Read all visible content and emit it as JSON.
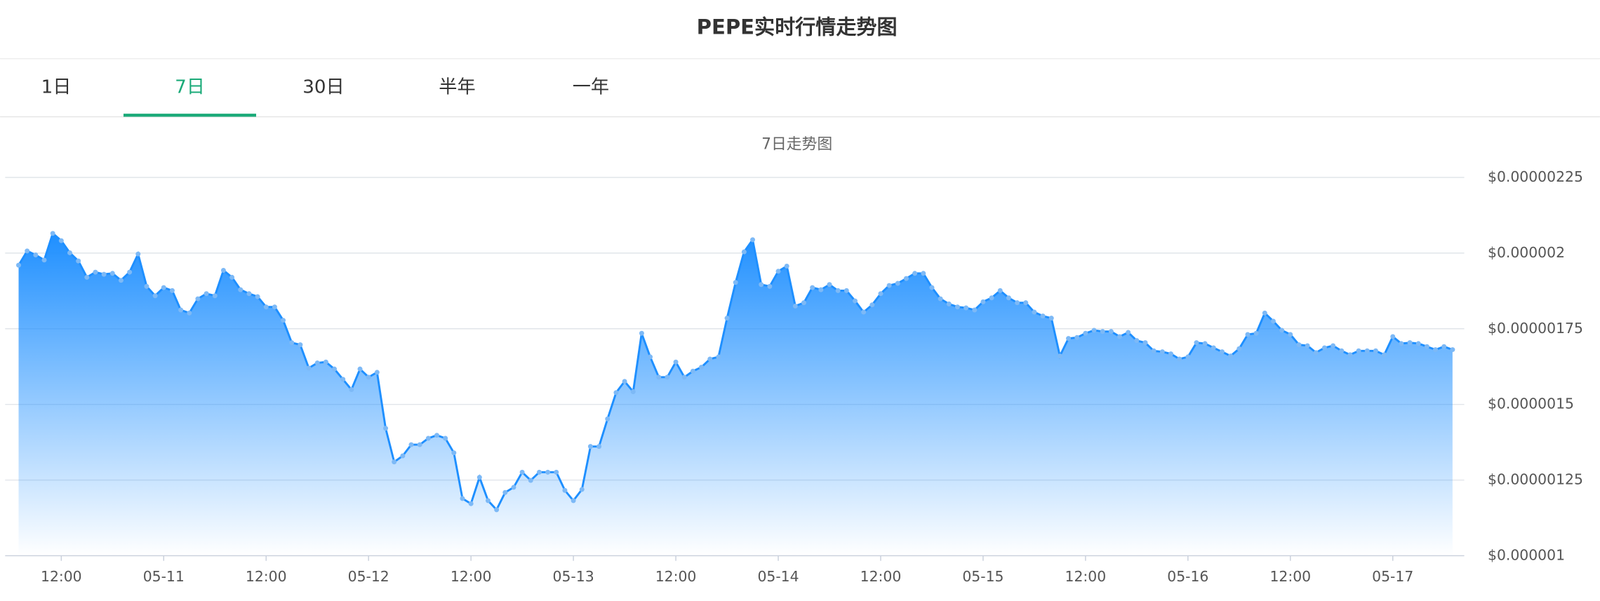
{
  "header": {
    "title": "PEPE实时行情走势图"
  },
  "tabs": {
    "items": [
      "1日",
      "7日",
      "30日",
      "半年",
      "一年"
    ],
    "active": 1,
    "active_color": "#1aaa78"
  },
  "chart_data": {
    "type": "area",
    "title": "7日走势图",
    "color": "#1e8fff",
    "categories": [
      null,
      null,
      null,
      null,
      null,
      "12:00",
      null,
      null,
      null,
      null,
      null,
      null,
      null,
      null,
      null,
      null,
      null,
      "05-11",
      null,
      null,
      null,
      null,
      null,
      null,
      null,
      null,
      null,
      null,
      null,
      "12:00",
      null,
      null,
      null,
      null,
      null,
      null,
      null,
      null,
      null,
      null,
      null,
      "05-12",
      null,
      null,
      null,
      null,
      null,
      null,
      null,
      null,
      null,
      null,
      null,
      "12:00",
      null,
      null,
      null,
      null,
      null,
      null,
      null,
      null,
      null,
      null,
      null,
      "05-13",
      null,
      null,
      null,
      null,
      null,
      null,
      null,
      null,
      null,
      null,
      null,
      "12:00",
      null,
      null,
      null,
      null,
      null,
      null,
      null,
      null,
      null,
      null,
      null,
      "05-14",
      null,
      null,
      null,
      null,
      null,
      null,
      null,
      null,
      null,
      null,
      null,
      "12:00",
      null,
      null,
      null,
      null,
      null,
      null,
      null,
      null,
      null,
      null,
      null,
      "05-15",
      null,
      null,
      null,
      null,
      null,
      null,
      null,
      null,
      null,
      null,
      null,
      "12:00",
      null,
      null,
      null,
      null,
      null,
      null,
      null,
      null,
      null,
      null,
      null,
      "05-16",
      null,
      null,
      null,
      null,
      null,
      null,
      null,
      null,
      null,
      null,
      null,
      "12:00",
      null,
      null,
      null,
      null,
      null,
      null,
      null,
      null,
      null,
      null,
      null,
      "05-17",
      null,
      null,
      null,
      null,
      null,
      null,
      null
    ],
    "values": [
      1.96e-06,
      2.007e-06,
      1.994e-06,
      1.977e-06,
      2.065e-06,
      2.041e-06,
      2.001e-06,
      1.974e-06,
      1.92e-06,
      1.937e-06,
      1.93e-06,
      1.933e-06,
      1.91e-06,
      1.937e-06,
      1.997e-06,
      1.89e-06,
      1.859e-06,
      1.886e-06,
      1.876e-06,
      1.812e-06,
      1.802e-06,
      1.849e-06,
      1.866e-06,
      1.859e-06,
      1.943e-06,
      1.92e-06,
      1.879e-06,
      1.866e-06,
      1.856e-06,
      1.822e-06,
      1.822e-06,
      1.778e-06,
      1.704e-06,
      1.697e-06,
      1.62e-06,
      1.637e-06,
      1.64e-06,
      1.617e-06,
      1.583e-06,
      1.549e-06,
      1.617e-06,
      1.59e-06,
      1.606e-06,
      1.421e-06,
      1.31e-06,
      1.33e-06,
      1.367e-06,
      1.367e-06,
      1.388e-06,
      1.398e-06,
      1.388e-06,
      1.34e-06,
      1.189e-06,
      1.172e-06,
      1.259e-06,
      1.182e-06,
      1.152e-06,
      1.209e-06,
      1.226e-06,
      1.276e-06,
      1.249e-06,
      1.276e-06,
      1.276e-06,
      1.276e-06,
      1.216e-06,
      1.182e-06,
      1.219e-06,
      1.361e-06,
      1.361e-06,
      1.452e-06,
      1.539e-06,
      1.576e-06,
      1.542e-06,
      1.735e-06,
      1.657e-06,
      1.59e-06,
      1.59e-06,
      1.64e-06,
      1.59e-06,
      1.61e-06,
      1.623e-06,
      1.65e-06,
      1.657e-06,
      1.785e-06,
      1.903e-06,
      2.004e-06,
      2.044e-06,
      1.896e-06,
      1.89e-06,
      1.94e-06,
      1.957e-06,
      1.825e-06,
      1.836e-06,
      1.886e-06,
      1.879e-06,
      1.896e-06,
      1.876e-06,
      1.876e-06,
      1.842e-06,
      1.805e-06,
      1.829e-06,
      1.866e-06,
      1.893e-06,
      1.9e-06,
      1.916e-06,
      1.933e-06,
      1.933e-06,
      1.886e-06,
      1.849e-06,
      1.832e-06,
      1.822e-06,
      1.819e-06,
      1.812e-06,
      1.839e-06,
      1.852e-06,
      1.876e-06,
      1.852e-06,
      1.836e-06,
      1.836e-06,
      1.805e-06,
      1.792e-06,
      1.785e-06,
      1.66e-06,
      1.718e-06,
      1.721e-06,
      1.735e-06,
      1.745e-06,
      1.741e-06,
      1.741e-06,
      1.724e-06,
      1.738e-06,
      1.711e-06,
      1.704e-06,
      1.677e-06,
      1.674e-06,
      1.667e-06,
      1.65e-06,
      1.657e-06,
      1.704e-06,
      1.701e-06,
      1.687e-06,
      1.674e-06,
      1.66e-06,
      1.684e-06,
      1.731e-06,
      1.735e-06,
      1.802e-06,
      1.775e-06,
      1.745e-06,
      1.731e-06,
      1.697e-06,
      1.694e-06,
      1.671e-06,
      1.687e-06,
      1.694e-06,
      1.677e-06,
      1.664e-06,
      1.677e-06,
      1.677e-06,
      1.677e-06,
      1.664e-06,
      1.724e-06,
      1.701e-06,
      1.704e-06,
      1.701e-06,
      1.691e-06,
      1.681e-06,
      1.691e-06,
      1.681e-06
    ],
    "ylim": [
      1e-06,
      2.25e-06
    ],
    "yticks": [
      {
        "value": 1e-06,
        "label": "$0.000001"
      },
      {
        "value": 1.25e-06,
        "label": "$0.00000125"
      },
      {
        "value": 1.5e-06,
        "label": "$0.0000015"
      },
      {
        "value": 1.75e-06,
        "label": "$0.00000175"
      },
      {
        "value": 2e-06,
        "label": "$0.000002"
      },
      {
        "value": 2.25e-06,
        "label": "$0.00000225"
      }
    ],
    "grid": true
  }
}
